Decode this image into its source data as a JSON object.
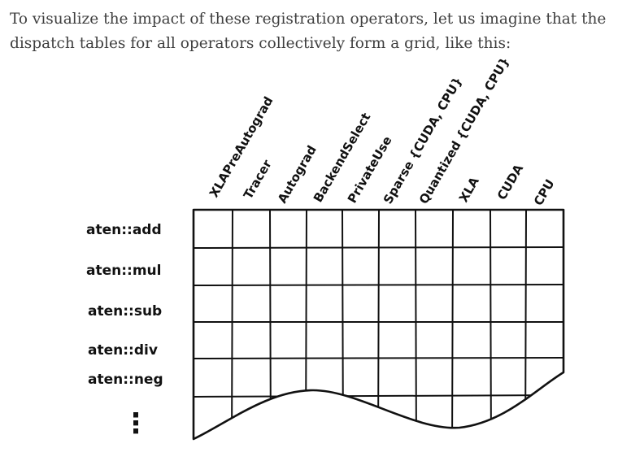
{
  "paragraph": "To visualize the impact of these registration operators, let us imagine that the dispatch tables for all operators collectively form a grid, like this:",
  "figure": {
    "column_labels": [
      "XLAPreAutograd",
      "Tracer",
      "Autograd",
      "BackendSelect",
      "PrivateUse",
      "Sparse {CUDA, CPU}",
      "Quantized {CUDA, CPU}",
      "XLA",
      "CUDA",
      "CPU"
    ],
    "row_labels": [
      "aten::add",
      "aten::mul",
      "aten::sub",
      "aten::div",
      "aten::neg"
    ],
    "more_rows_marker": "⋮"
  }
}
